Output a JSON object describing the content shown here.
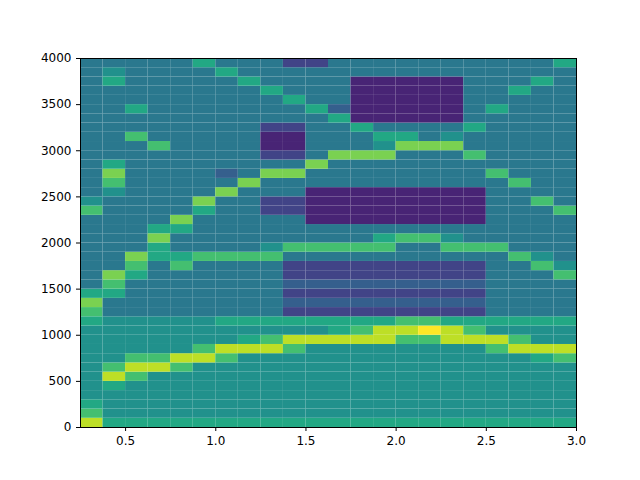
{
  "chart_data": {
    "type": "heatmap",
    "x_edges": [
      0.25,
      0.375,
      0.5,
      0.625,
      0.75,
      0.875,
      1.0,
      1.125,
      1.25,
      1.375,
      1.5,
      1.625,
      1.75,
      1.875,
      2.0,
      2.125,
      2.25,
      2.375,
      2.5,
      2.625,
      2.75,
      2.875,
      3.0
    ],
    "y_edges": [
      0,
      100,
      200,
      300,
      400,
      500,
      600,
      700,
      800,
      900,
      1000,
      1100,
      1200,
      1300,
      1400,
      1500,
      1600,
      1700,
      1800,
      1900,
      2000,
      2100,
      2200,
      2300,
      2400,
      2500,
      2600,
      2700,
      2800,
      2900,
      3000,
      3100,
      3200,
      3300,
      3400,
      3500,
      3600,
      3700,
      3800,
      3900,
      4000
    ],
    "z": [
      [
        9,
        6,
        6,
        6,
        6,
        6,
        6,
        6,
        6,
        6,
        6,
        6,
        6,
        6,
        6,
        6,
        6,
        6,
        6,
        6,
        6,
        6
      ],
      [
        7,
        5,
        5,
        5,
        5,
        5,
        5,
        5,
        5,
        5,
        5,
        5,
        5,
        5,
        5,
        5,
        5,
        5,
        5,
        5,
        5,
        5
      ],
      [
        6,
        5,
        5,
        5,
        5,
        5,
        5,
        5,
        5,
        5,
        5,
        5,
        5,
        5,
        5,
        5,
        5,
        5,
        5,
        5,
        5,
        5
      ],
      [
        5,
        5,
        5,
        5,
        5,
        5,
        5,
        5,
        5,
        5,
        5,
        5,
        5,
        5,
        5,
        5,
        5,
        5,
        5,
        5,
        5,
        5
      ],
      [
        5,
        6,
        5,
        5,
        5,
        5,
        5,
        5,
        5,
        5,
        5,
        5,
        5,
        5,
        5,
        5,
        5,
        5,
        5,
        5,
        5,
        5
      ],
      [
        5,
        9,
        7,
        5,
        5,
        5,
        5,
        5,
        5,
        5,
        5,
        5,
        5,
        5,
        5,
        5,
        5,
        5,
        5,
        5,
        5,
        5
      ],
      [
        5,
        7,
        9,
        9,
        7,
        5,
        5,
        5,
        5,
        5,
        5,
        5,
        5,
        5,
        5,
        5,
        5,
        5,
        5,
        5,
        5,
        5
      ],
      [
        5,
        5,
        7,
        7,
        9,
        9,
        7,
        5,
        5,
        5,
        5,
        5,
        5,
        5,
        5,
        5,
        5,
        5,
        5,
        5,
        6,
        7
      ],
      [
        5,
        5,
        5,
        5,
        5,
        7,
        9,
        9,
        9,
        7,
        5,
        5,
        5,
        5,
        5,
        5,
        5,
        5,
        7,
        9,
        9,
        9
      ],
      [
        5,
        5,
        5,
        5,
        5,
        5,
        5,
        6,
        7,
        9,
        9,
        9,
        9,
        9,
        7,
        7,
        9,
        9,
        9,
        7,
        5,
        5
      ],
      [
        5,
        5,
        5,
        5,
        5,
        5,
        5,
        5,
        5,
        5,
        5,
        6,
        7,
        9,
        9,
        10,
        9,
        7,
        5,
        5,
        5,
        5
      ],
      [
        6,
        5,
        5,
        5,
        5,
        5,
        6,
        6,
        6,
        6,
        6,
        6,
        6,
        6,
        7,
        7,
        6,
        6,
        6,
        6,
        6,
        6
      ],
      [
        7,
        4,
        4,
        4,
        4,
        4,
        4,
        4,
        4,
        2,
        2,
        2,
        2,
        2,
        2,
        2,
        2,
        2,
        4,
        4,
        4,
        4
      ],
      [
        8,
        4,
        4,
        4,
        4,
        4,
        4,
        4,
        4,
        3,
        3,
        3,
        3,
        3,
        3,
        3,
        3,
        3,
        4,
        4,
        4,
        4
      ],
      [
        6,
        6,
        4,
        4,
        4,
        4,
        4,
        4,
        4,
        2,
        2,
        2,
        2,
        2,
        2,
        2,
        2,
        2,
        4,
        4,
        4,
        4
      ],
      [
        4,
        7,
        4,
        4,
        4,
        4,
        4,
        4,
        4,
        3,
        3,
        3,
        3,
        3,
        3,
        3,
        3,
        3,
        4,
        4,
        4,
        4
      ],
      [
        4,
        8,
        6,
        4,
        4,
        4,
        4,
        4,
        4,
        2,
        2,
        2,
        2,
        2,
        2,
        2,
        2,
        2,
        4,
        4,
        4,
        7
      ],
      [
        4,
        4,
        7,
        4,
        7,
        4,
        4,
        4,
        4,
        2,
        2,
        2,
        2,
        2,
        2,
        2,
        2,
        2,
        4,
        4,
        7,
        5
      ],
      [
        4,
        4,
        8,
        6,
        6,
        7,
        7,
        7,
        7,
        4,
        4,
        4,
        4,
        4,
        4,
        4,
        4,
        4,
        4,
        7,
        5,
        4
      ],
      [
        4,
        4,
        4,
        6,
        4,
        4,
        4,
        4,
        5,
        7,
        7,
        7,
        7,
        7,
        4,
        4,
        7,
        7,
        7,
        4,
        4,
        4
      ],
      [
        4,
        4,
        4,
        8,
        4,
        4,
        4,
        4,
        4,
        4,
        4,
        4,
        4,
        6,
        7,
        7,
        5,
        4,
        4,
        4,
        4,
        4
      ],
      [
        4,
        4,
        4,
        6,
        6,
        4,
        4,
        4,
        4,
        4,
        4,
        4,
        4,
        4,
        4,
        4,
        4,
        4,
        4,
        4,
        4,
        4
      ],
      [
        4,
        4,
        4,
        4,
        8,
        4,
        4,
        4,
        4,
        4,
        1,
        1,
        1,
        1,
        1,
        1,
        1,
        1,
        4,
        4,
        4,
        4
      ],
      [
        7,
        4,
        4,
        4,
        4,
        6,
        4,
        4,
        2,
        2,
        1,
        1,
        1,
        1,
        1,
        1,
        1,
        1,
        4,
        4,
        4,
        7
      ],
      [
        5,
        4,
        4,
        4,
        4,
        8,
        4,
        4,
        2,
        2,
        1,
        1,
        1,
        1,
        1,
        1,
        1,
        1,
        4,
        4,
        7,
        4
      ],
      [
        4,
        5,
        4,
        4,
        4,
        4,
        8,
        4,
        4,
        4,
        1,
        1,
        1,
        1,
        1,
        1,
        1,
        1,
        4,
        4,
        4,
        4
      ],
      [
        4,
        7,
        4,
        4,
        4,
        4,
        4,
        8,
        4,
        4,
        4,
        4,
        4,
        4,
        4,
        4,
        4,
        4,
        4,
        7,
        4,
        4
      ],
      [
        4,
        8,
        4,
        4,
        4,
        4,
        3,
        4,
        8,
        8,
        4,
        4,
        4,
        4,
        4,
        4,
        4,
        4,
        7,
        4,
        4,
        4
      ],
      [
        4,
        6,
        4,
        4,
        4,
        4,
        4,
        4,
        4,
        4,
        8,
        4,
        4,
        4,
        4,
        4,
        4,
        4,
        4,
        4,
        4,
        4
      ],
      [
        4,
        4,
        4,
        4,
        4,
        4,
        4,
        4,
        2,
        2,
        4,
        8,
        8,
        8,
        4,
        4,
        4,
        7,
        4,
        4,
        4,
        4
      ],
      [
        4,
        4,
        4,
        7,
        4,
        4,
        4,
        4,
        1,
        1,
        4,
        4,
        4,
        5,
        8,
        8,
        8,
        4,
        4,
        4,
        4,
        4
      ],
      [
        4,
        4,
        7,
        4,
        4,
        4,
        4,
        4,
        1,
        1,
        4,
        4,
        4,
        6,
        6,
        4,
        5,
        4,
        4,
        4,
        4,
        4
      ],
      [
        4,
        4,
        4,
        4,
        4,
        4,
        4,
        4,
        2,
        2,
        4,
        4,
        6,
        4,
        4,
        4,
        4,
        6,
        4,
        4,
        4,
        4
      ],
      [
        4,
        4,
        4,
        4,
        4,
        4,
        4,
        4,
        4,
        4,
        4,
        6,
        1,
        1,
        1,
        1,
        1,
        4,
        4,
        4,
        4,
        4
      ],
      [
        4,
        4,
        6,
        4,
        4,
        4,
        4,
        4,
        4,
        4,
        6,
        3,
        1,
        1,
        1,
        1,
        1,
        4,
        6,
        4,
        4,
        4
      ],
      [
        4,
        4,
        4,
        4,
        4,
        4,
        4,
        4,
        4,
        6,
        4,
        4,
        1,
        1,
        1,
        1,
        1,
        4,
        4,
        4,
        4,
        4
      ],
      [
        4,
        4,
        4,
        4,
        4,
        4,
        4,
        4,
        6,
        4,
        4,
        4,
        1,
        1,
        1,
        1,
        1,
        4,
        4,
        6,
        4,
        4
      ],
      [
        4,
        6,
        4,
        4,
        4,
        4,
        4,
        6,
        4,
        4,
        4,
        4,
        1,
        1,
        1,
        1,
        1,
        4,
        4,
        4,
        6,
        4
      ],
      [
        4,
        5,
        4,
        4,
        4,
        4,
        6,
        4,
        4,
        4,
        4,
        4,
        4,
        4,
        4,
        4,
        4,
        4,
        4,
        4,
        4,
        4
      ],
      [
        4,
        4,
        4,
        4,
        4,
        6,
        4,
        4,
        4,
        2,
        2,
        4,
        4,
        4,
        4,
        4,
        4,
        4,
        4,
        4,
        4,
        6
      ]
    ],
    "zlim": [
      0,
      10
    ],
    "xlim": [
      0.25,
      3.0
    ],
    "xticks": [
      0.5,
      {
        "value": 1,
        "label": "1.0"
      },
      1.5,
      {
        "value": 2,
        "label": "2.0"
      },
      2.5,
      {
        "value": 3,
        "label": "3.0"
      }
    ],
    "ylim": [
      0,
      4000
    ],
    "yticks": [
      0,
      500,
      1000,
      1500,
      2000,
      2500,
      3000,
      3500,
      4000
    ]
  }
}
